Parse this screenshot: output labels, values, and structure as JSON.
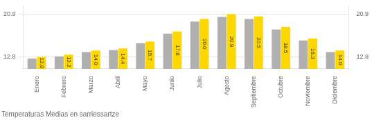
{
  "chart_data": {
    "type": "bar",
    "title": "Temperaturas Medias en sarriessartze",
    "categories": [
      "Enero",
      "Febrero",
      "Marzo",
      "Abril",
      "Mayo",
      "Junio",
      "Julio",
      "Agosto",
      "Septiembre",
      "Octubre",
      "Noviembre",
      "Diciembre"
    ],
    "series": [
      {
        "color": "#B0B0B0",
        "values": [
          12.5,
          12.9,
          13.7,
          14.1,
          15.4,
          17.2,
          19.5,
          20.4,
          20.0,
          18.0,
          15.9,
          13.7
        ]
      },
      {
        "color": "#FFD700",
        "values": [
          12.8,
          13.2,
          14.0,
          14.4,
          15.7,
          17.6,
          20.0,
          20.9,
          20.5,
          18.5,
          16.3,
          14.0
        ],
        "value_labels": [
          "12.8",
          "13.2",
          "14.0",
          "14.4",
          "15.7",
          "17.6",
          "20.0",
          "20.9",
          "20.5",
          "18.5",
          "16.3",
          "14.0"
        ],
        "data_labels": true
      }
    ],
    "ylim": [
      10.5,
      22.5
    ],
    "yticks": [
      12.8,
      20.9
    ],
    "y2lim": [
      10.5,
      22.5
    ],
    "y2ticks": [
      12.8,
      20.9
    ],
    "grid": true
  }
}
